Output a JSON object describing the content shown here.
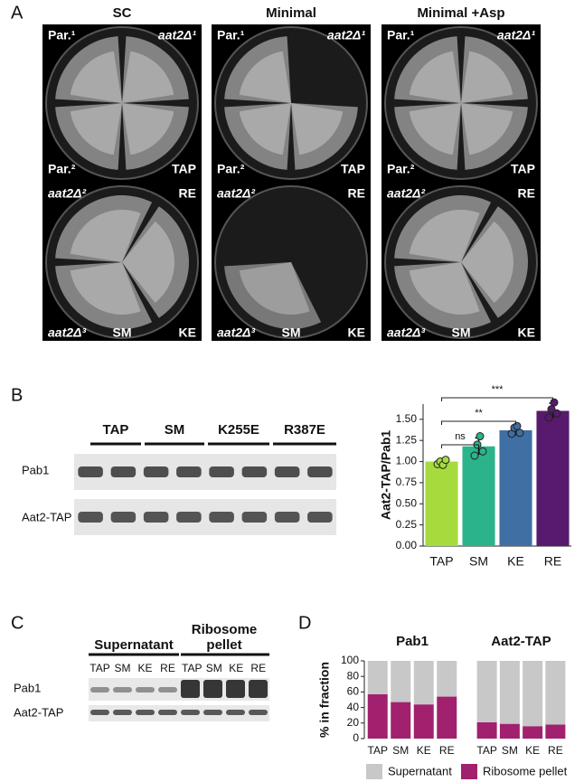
{
  "panel_labels": [
    "A",
    "B",
    "C",
    "D"
  ],
  "panel_a": {
    "columns": [
      {
        "title": "SC",
        "labels": [
          "Par.¹",
          "aat2Δ¹",
          "Par.²",
          "TAP",
          "aat2Δ²",
          "RE",
          "aat2Δ³",
          "SM",
          "KE"
        ]
      },
      {
        "title": "Minimal",
        "labels": [
          "Par.¹",
          "aat2Δ¹",
          "Par.²",
          "TAP",
          "aat2Δ²",
          "RE",
          "aat2Δ³",
          "SM",
          "KE"
        ]
      },
      {
        "title": "Minimal +Asp",
        "labels": [
          "Par.¹",
          "aat2Δ¹",
          "Par.²",
          "TAP",
          "aat2Δ²",
          "RE",
          "aat2Δ³",
          "SM",
          "KE"
        ]
      }
    ]
  },
  "panel_b_blot": {
    "lanes": [
      "TAP",
      "SM",
      "K255E",
      "R387E"
    ],
    "rows": [
      "Pab1",
      "Aat2-TAP"
    ]
  },
  "panel_c_blot": {
    "fractions": [
      "Supernatant",
      "Ribosome pellet"
    ],
    "lanes": [
      [
        "TAP",
        "SM",
        "KE",
        "RE"
      ],
      [
        "TAP",
        "SM",
        "KE",
        "RE"
      ]
    ],
    "rows": [
      "Pab1",
      "Aat2-TAP"
    ]
  },
  "chart_data": [
    {
      "type": "bar",
      "ylabel": "Aat2-TAP/Pab1",
      "categories": [
        "TAP",
        "SM",
        "KE",
        "RE"
      ],
      "values": [
        1.0,
        1.18,
        1.37,
        1.6
      ],
      "errors": [
        0.03,
        0.1,
        0.06,
        0.09
      ],
      "points": [
        [
          0.97,
          1.0,
          0.96,
          1.02
        ],
        [
          1.07,
          1.2,
          1.3,
          1.12
        ],
        [
          1.33,
          1.4,
          1.42,
          1.34
        ],
        [
          1.52,
          1.62,
          1.7,
          1.57
        ]
      ],
      "colors": [
        "#a6db3d",
        "#2bb48c",
        "#3f6fa3",
        "#581a6c"
      ],
      "ylim": [
        0,
        1.68
      ],
      "yticks": [
        {
          "value": 0,
          "label": "0.00"
        },
        {
          "value": 0.25,
          "label": "0.25"
        },
        {
          "value": 0.5,
          "label": "0.50"
        },
        {
          "value": 0.75,
          "label": "0.75"
        },
        {
          "value": 1,
          "label": "1.00"
        },
        {
          "value": 1.25,
          "label": "1.25"
        },
        {
          "value": 1.5,
          "label": "1.50"
        }
      ],
      "significance": [
        "ns",
        "**",
        "***"
      ]
    },
    {
      "type": "stacked_bar",
      "title": "Pab1",
      "ylabel": "% in fraction",
      "categories": [
        "TAP",
        "SM",
        "KE",
        "RE"
      ],
      "series": [
        {
          "name": "Supernatant",
          "color": "#c8c8c8",
          "values": [
            43,
            53,
            56,
            46
          ]
        },
        {
          "name": "Ribosome pellet",
          "color": "#a1216f",
          "values": [
            57,
            47,
            44,
            54
          ]
        }
      ],
      "ylim": [
        0,
        100
      ],
      "yticks": [
        0,
        20,
        40,
        60,
        80,
        100
      ],
      "legend": "bottom"
    },
    {
      "type": "stacked_bar",
      "title": "Aat2-TAP",
      "categories": [
        "TAP",
        "SM",
        "KE",
        "RE"
      ],
      "series": [
        {
          "color": "#c8c8c8",
          "values": [
            79,
            81,
            84,
            82
          ]
        },
        {
          "color": "#a1216f",
          "values": [
            21,
            19,
            16,
            18
          ]
        }
      ],
      "ylim": [
        0,
        100
      ]
    }
  ]
}
